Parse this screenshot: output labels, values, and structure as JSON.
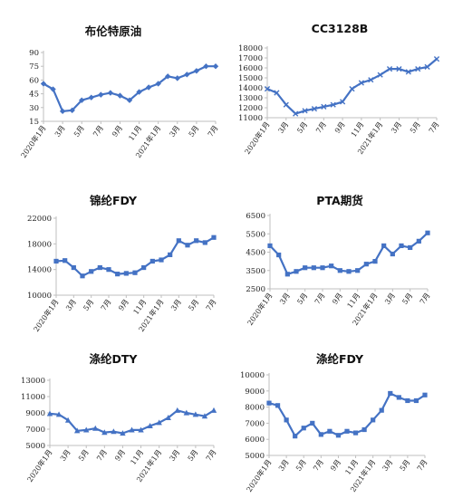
{
  "chart_data": [
    {
      "type": "line",
      "title": "布伦特原油",
      "marker": "diamond",
      "xticks": [
        "2020年1月",
        "3月",
        "5月",
        "7月",
        "9月",
        "11月",
        "2021年1月",
        "3月",
        "5月",
        "7月"
      ],
      "yticks": [
        "15",
        "30",
        "45",
        "60",
        "75",
        "90"
      ],
      "ylim": [
        15,
        90
      ],
      "series": [
        {
          "values": [
            56,
            50,
            26,
            27,
            38,
            41,
            44,
            46,
            43,
            38,
            47,
            52,
            56,
            64,
            62,
            66,
            70,
            75,
            75
          ]
        }
      ]
    },
    {
      "type": "line",
      "title": "CC3128B",
      "marker": "x",
      "xticks": [
        "2020年1月",
        "3月",
        "5月",
        "7月",
        "9月",
        "11月",
        "2021年1月",
        "3月",
        "5月",
        "7月"
      ],
      "yticks": [
        "11000",
        "12000",
        "13000",
        "14000",
        "15000",
        "16000",
        "17000",
        "18000"
      ],
      "ylim": [
        11000,
        18000
      ],
      "series": [
        {
          "values": [
            13900,
            13500,
            12300,
            11400,
            11700,
            11900,
            12100,
            12300,
            12600,
            13900,
            14500,
            14800,
            15300,
            15900,
            15900,
            15600,
            15900,
            16100,
            16900
          ]
        }
      ]
    },
    {
      "type": "line",
      "title": "锦纶FDY",
      "marker": "square",
      "xticks": [
        "2020年1月",
        "3月",
        "5月",
        "7月",
        "9月",
        "11月",
        "2021年1月",
        "3月",
        "5月",
        "7月"
      ],
      "yticks": [
        "10000",
        "14000",
        "18000",
        "22000"
      ],
      "ylim": [
        10000,
        22000
      ],
      "series": [
        {
          "values": [
            15300,
            15400,
            14300,
            13000,
            13700,
            14300,
            14000,
            13300,
            13400,
            13500,
            14300,
            15300,
            15500,
            16300,
            18500,
            17800,
            18500,
            18200,
            19000
          ]
        }
      ]
    },
    {
      "type": "line",
      "title": "PTA期货",
      "marker": "square",
      "xticks": [
        "2020年1月",
        "3月",
        "5月",
        "7月",
        "9月",
        "11月",
        "2021年1月",
        "3月",
        "5月",
        "7月"
      ],
      "yticks": [
        "2500",
        "3500",
        "4500",
        "5500",
        "6500"
      ],
      "ylim": [
        2500,
        6500
      ],
      "series": [
        {
          "values": [
            4850,
            4350,
            3300,
            3450,
            3650,
            3650,
            3650,
            3750,
            3500,
            3450,
            3500,
            3850,
            4000,
            4850,
            4400,
            4850,
            4750,
            5100,
            5550
          ]
        }
      ]
    },
    {
      "type": "line",
      "title": "涤纶DTY",
      "marker": "triangle",
      "xticks": [
        "2020年1月",
        "3月",
        "5月",
        "7月",
        "9月",
        "11月",
        "2021年1月",
        "3月",
        "5月",
        "7月"
      ],
      "yticks": [
        "5000",
        "7000",
        "9000",
        "11000",
        "13000"
      ],
      "ylim": [
        5000,
        13000
      ],
      "series": [
        {
          "values": [
            8900,
            8800,
            8100,
            6800,
            6900,
            7100,
            6600,
            6700,
            6500,
            6900,
            6900,
            7400,
            7800,
            8400,
            9300,
            9000,
            8800,
            8600,
            9300
          ]
        }
      ]
    },
    {
      "type": "line",
      "title": "涤纶FDY",
      "marker": "square",
      "xticks": [
        "2020年1月",
        "3月",
        "5月",
        "7月",
        "9月",
        "11月",
        "2021年1月",
        "3月",
        "5月",
        "7月"
      ],
      "yticks": [
        "5000",
        "6000",
        "7000",
        "8000",
        "9000",
        "10000"
      ],
      "ylim": [
        5000,
        10000
      ],
      "series": [
        {
          "values": [
            8250,
            8100,
            7200,
            6200,
            6700,
            7000,
            6300,
            6500,
            6250,
            6500,
            6400,
            6600,
            7200,
            7800,
            8850,
            8600,
            8400,
            8400,
            8750
          ]
        }
      ]
    }
  ],
  "colors": {
    "line": "#4472C4",
    "axis": "#bfbfbf"
  }
}
